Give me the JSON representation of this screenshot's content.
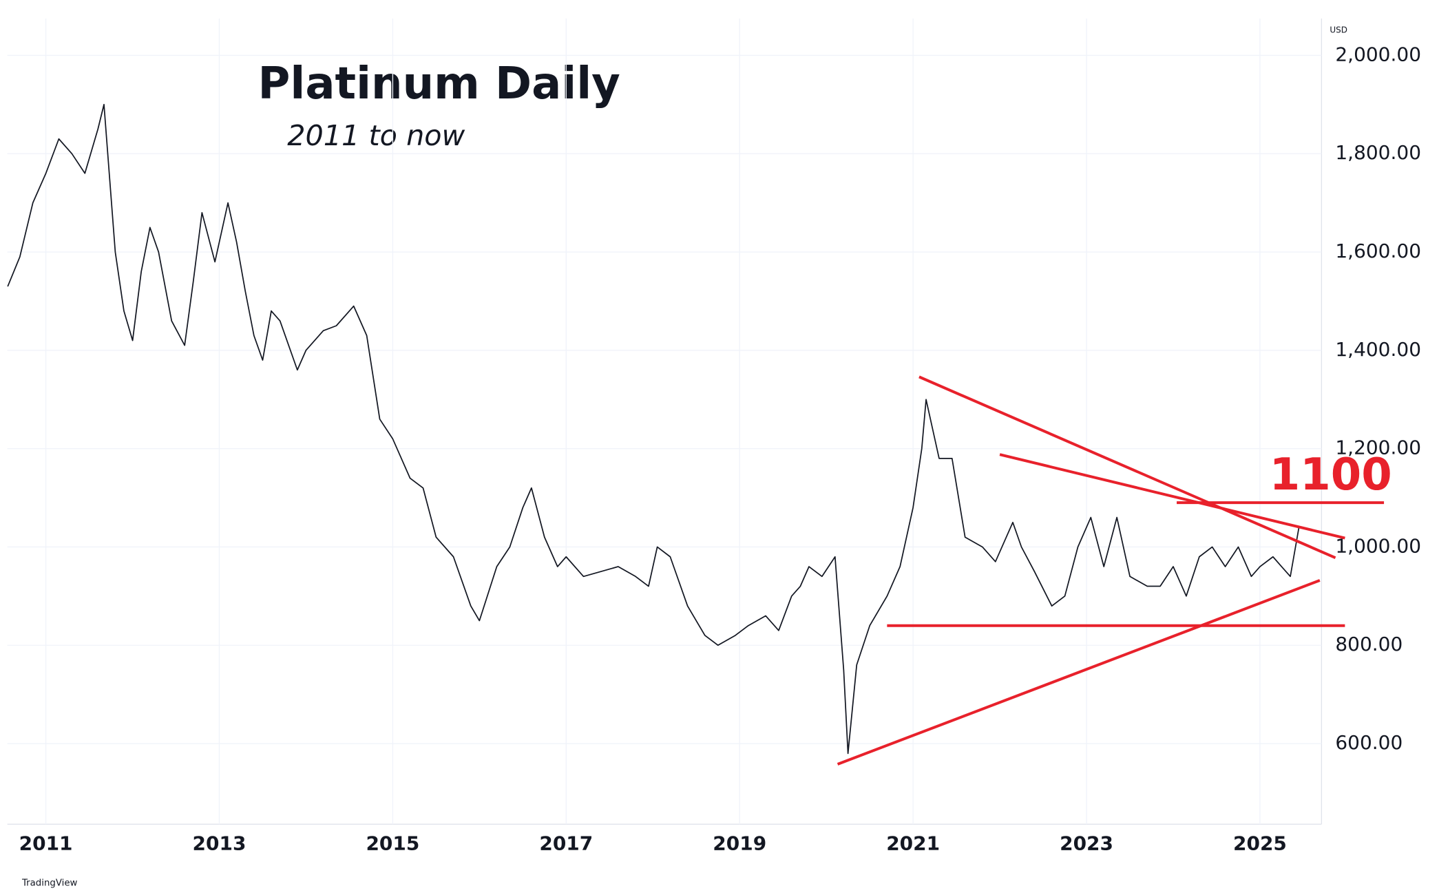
{
  "chart_data": {
    "type": "line",
    "title": "Platinum Daily",
    "subtitle": "2011 to now",
    "currency": "USD",
    "watermark": "TradingView",
    "color": "#131722",
    "trend_color": "#e8212b",
    "grid": true,
    "xlim": [
      2010.556,
      2025.71
    ],
    "ylim": [
      436,
      2075
    ],
    "xticks": [
      2011,
      2013,
      2015,
      2017,
      2019,
      2021,
      2023,
      2025
    ],
    "yticks": [
      {
        "value": 600,
        "label": "600.00"
      },
      {
        "value": 800,
        "label": "800.00"
      },
      {
        "value": 1000,
        "label": "1,000.00"
      },
      {
        "value": 1200,
        "label": "1,200.00"
      },
      {
        "value": 1400,
        "label": "1,400.00"
      },
      {
        "value": 1600,
        "label": "1,600.00"
      },
      {
        "value": 1800,
        "label": "1,800.00"
      },
      {
        "value": 2000,
        "label": "2,000.00"
      }
    ],
    "x": [
      2010.56,
      2010.7,
      2010.85,
      2011.0,
      2011.15,
      2011.3,
      2011.45,
      2011.6,
      2011.67,
      2011.8,
      2011.9,
      2012.0,
      2012.1,
      2012.2,
      2012.3,
      2012.45,
      2012.6,
      2012.7,
      2012.8,
      2012.95,
      2013.1,
      2013.2,
      2013.3,
      2013.4,
      2013.5,
      2013.6,
      2013.7,
      2013.9,
      2014.0,
      2014.2,
      2014.35,
      2014.55,
      2014.7,
      2014.85,
      2015.0,
      2015.2,
      2015.35,
      2015.5,
      2015.7,
      2015.9,
      2016.0,
      2016.2,
      2016.35,
      2016.5,
      2016.6,
      2016.75,
      2016.9,
      2017.0,
      2017.2,
      2017.4,
      2017.6,
      2017.8,
      2017.95,
      2018.05,
      2018.2,
      2018.4,
      2018.6,
      2018.75,
      2018.95,
      2019.1,
      2019.3,
      2019.45,
      2019.6,
      2019.7,
      2019.8,
      2019.95,
      2020.1,
      2020.2,
      2020.25,
      2020.35,
      2020.5,
      2020.7,
      2020.85,
      2021.0,
      2021.1,
      2021.15,
      2021.3,
      2021.45,
      2021.6,
      2021.8,
      2021.95,
      2022.15,
      2022.25,
      2022.4,
      2022.6,
      2022.75,
      2022.9,
      2023.05,
      2023.2,
      2023.35,
      2023.5,
      2023.7,
      2023.85,
      2024.0,
      2024.15,
      2024.3,
      2024.45,
      2024.6,
      2024.75,
      2024.9,
      2025.0,
      2025.15,
      2025.25,
      2025.35,
      2025.45
    ],
    "values": [
      1530,
      1590,
      1700,
      1760,
      1830,
      1800,
      1760,
      1850,
      1900,
      1600,
      1480,
      1420,
      1560,
      1650,
      1600,
      1460,
      1410,
      1540,
      1680,
      1580,
      1700,
      1620,
      1520,
      1430,
      1380,
      1480,
      1460,
      1360,
      1400,
      1440,
      1450,
      1490,
      1430,
      1260,
      1220,
      1140,
      1120,
      1020,
      980,
      880,
      850,
      960,
      1000,
      1080,
      1120,
      1020,
      960,
      980,
      940,
      950,
      960,
      940,
      920,
      1000,
      980,
      880,
      820,
      800,
      820,
      840,
      860,
      830,
      900,
      920,
      960,
      940,
      980,
      750,
      580,
      760,
      840,
      900,
      960,
      1080,
      1200,
      1300,
      1180,
      1180,
      1020,
      1000,
      970,
      1050,
      1000,
      950,
      880,
      900,
      1000,
      1060,
      960,
      1060,
      940,
      920,
      920,
      960,
      900,
      980,
      1000,
      960,
      1000,
      940,
      960,
      980,
      960,
      940,
      1040
    ],
    "trendlines": [
      {
        "x": [
          2021.07,
          2025.87
        ],
        "y": [
          1346,
          978
        ]
      },
      {
        "x": [
          2022.0,
          2025.98
        ],
        "y": [
          1188,
          1018
        ]
      },
      {
        "x": [
          2024.04,
          2026.43
        ],
        "y": [
          1090,
          1090
        ]
      },
      {
        "x": [
          2020.7,
          2025.98
        ],
        "y": [
          840,
          840
        ]
      },
      {
        "x": [
          2020.13,
          2025.69
        ],
        "y": [
          558,
          932
        ]
      }
    ],
    "annotation": "1100"
  }
}
